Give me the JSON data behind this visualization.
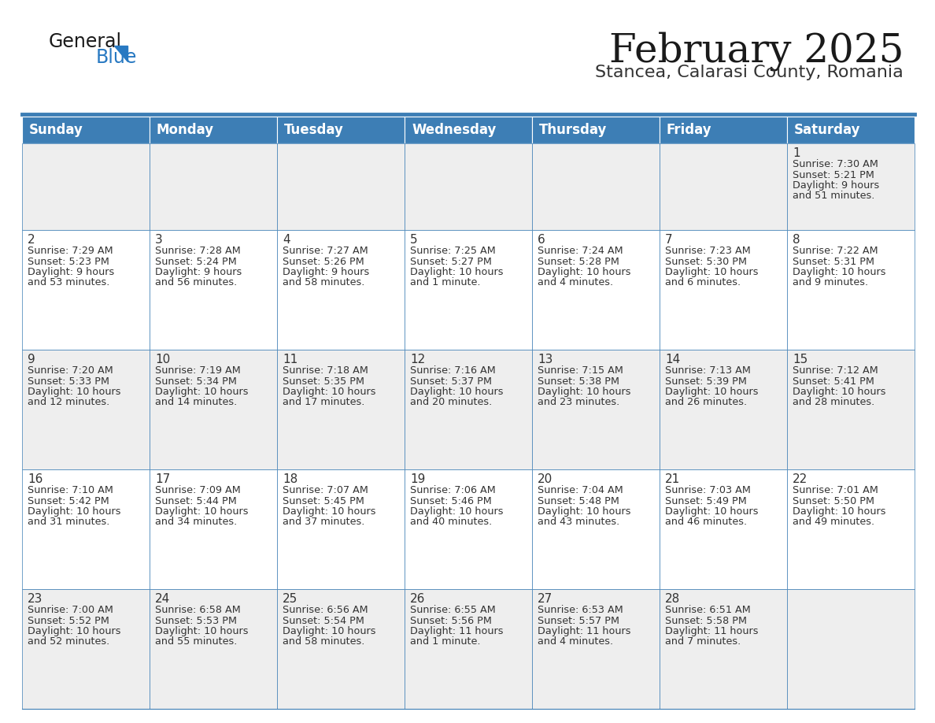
{
  "title": "February 2025",
  "subtitle": "Stancea, Calarasi County, Romania",
  "days_of_week": [
    "Sunday",
    "Monday",
    "Tuesday",
    "Wednesday",
    "Thursday",
    "Friday",
    "Saturday"
  ],
  "header_bg": "#3D7EB5",
  "header_text": "#FFFFFF",
  "cell_bg_light": "#EEEEEE",
  "cell_bg_white": "#FFFFFF",
  "cell_text": "#333333",
  "day_num_color": "#333333",
  "border_color": "#3D7EB5",
  "title_color": "#1a1a1a",
  "subtitle_color": "#333333",
  "logo_dark_color": "#1a1a1a",
  "logo_blue_color": "#2879C2",
  "weeks": [
    [
      null,
      null,
      null,
      null,
      null,
      null,
      1
    ],
    [
      2,
      3,
      4,
      5,
      6,
      7,
      8
    ],
    [
      9,
      10,
      11,
      12,
      13,
      14,
      15
    ],
    [
      16,
      17,
      18,
      19,
      20,
      21,
      22
    ],
    [
      23,
      24,
      25,
      26,
      27,
      28,
      null
    ]
  ],
  "row_bg": [
    "#EEEEEE",
    "#FFFFFF",
    "#EEEEEE",
    "#FFFFFF",
    "#EEEEEE"
  ],
  "day_data": {
    "1": {
      "sunrise": "7:30 AM",
      "sunset": "5:21 PM",
      "daylight_l1": "Daylight: 9 hours",
      "daylight_l2": "and 51 minutes."
    },
    "2": {
      "sunrise": "7:29 AM",
      "sunset": "5:23 PM",
      "daylight_l1": "Daylight: 9 hours",
      "daylight_l2": "and 53 minutes."
    },
    "3": {
      "sunrise": "7:28 AM",
      "sunset": "5:24 PM",
      "daylight_l1": "Daylight: 9 hours",
      "daylight_l2": "and 56 minutes."
    },
    "4": {
      "sunrise": "7:27 AM",
      "sunset": "5:26 PM",
      "daylight_l1": "Daylight: 9 hours",
      "daylight_l2": "and 58 minutes."
    },
    "5": {
      "sunrise": "7:25 AM",
      "sunset": "5:27 PM",
      "daylight_l1": "Daylight: 10 hours",
      "daylight_l2": "and 1 minute."
    },
    "6": {
      "sunrise": "7:24 AM",
      "sunset": "5:28 PM",
      "daylight_l1": "Daylight: 10 hours",
      "daylight_l2": "and 4 minutes."
    },
    "7": {
      "sunrise": "7:23 AM",
      "sunset": "5:30 PM",
      "daylight_l1": "Daylight: 10 hours",
      "daylight_l2": "and 6 minutes."
    },
    "8": {
      "sunrise": "7:22 AM",
      "sunset": "5:31 PM",
      "daylight_l1": "Daylight: 10 hours",
      "daylight_l2": "and 9 minutes."
    },
    "9": {
      "sunrise": "7:20 AM",
      "sunset": "5:33 PM",
      "daylight_l1": "Daylight: 10 hours",
      "daylight_l2": "and 12 minutes."
    },
    "10": {
      "sunrise": "7:19 AM",
      "sunset": "5:34 PM",
      "daylight_l1": "Daylight: 10 hours",
      "daylight_l2": "and 14 minutes."
    },
    "11": {
      "sunrise": "7:18 AM",
      "sunset": "5:35 PM",
      "daylight_l1": "Daylight: 10 hours",
      "daylight_l2": "and 17 minutes."
    },
    "12": {
      "sunrise": "7:16 AM",
      "sunset": "5:37 PM",
      "daylight_l1": "Daylight: 10 hours",
      "daylight_l2": "and 20 minutes."
    },
    "13": {
      "sunrise": "7:15 AM",
      "sunset": "5:38 PM",
      "daylight_l1": "Daylight: 10 hours",
      "daylight_l2": "and 23 minutes."
    },
    "14": {
      "sunrise": "7:13 AM",
      "sunset": "5:39 PM",
      "daylight_l1": "Daylight: 10 hours",
      "daylight_l2": "and 26 minutes."
    },
    "15": {
      "sunrise": "7:12 AM",
      "sunset": "5:41 PM",
      "daylight_l1": "Daylight: 10 hours",
      "daylight_l2": "and 28 minutes."
    },
    "16": {
      "sunrise": "7:10 AM",
      "sunset": "5:42 PM",
      "daylight_l1": "Daylight: 10 hours",
      "daylight_l2": "and 31 minutes."
    },
    "17": {
      "sunrise": "7:09 AM",
      "sunset": "5:44 PM",
      "daylight_l1": "Daylight: 10 hours",
      "daylight_l2": "and 34 minutes."
    },
    "18": {
      "sunrise": "7:07 AM",
      "sunset": "5:45 PM",
      "daylight_l1": "Daylight: 10 hours",
      "daylight_l2": "and 37 minutes."
    },
    "19": {
      "sunrise": "7:06 AM",
      "sunset": "5:46 PM",
      "daylight_l1": "Daylight: 10 hours",
      "daylight_l2": "and 40 minutes."
    },
    "20": {
      "sunrise": "7:04 AM",
      "sunset": "5:48 PM",
      "daylight_l1": "Daylight: 10 hours",
      "daylight_l2": "and 43 minutes."
    },
    "21": {
      "sunrise": "7:03 AM",
      "sunset": "5:49 PM",
      "daylight_l1": "Daylight: 10 hours",
      "daylight_l2": "and 46 minutes."
    },
    "22": {
      "sunrise": "7:01 AM",
      "sunset": "5:50 PM",
      "daylight_l1": "Daylight: 10 hours",
      "daylight_l2": "and 49 minutes."
    },
    "23": {
      "sunrise": "7:00 AM",
      "sunset": "5:52 PM",
      "daylight_l1": "Daylight: 10 hours",
      "daylight_l2": "and 52 minutes."
    },
    "24": {
      "sunrise": "6:58 AM",
      "sunset": "5:53 PM",
      "daylight_l1": "Daylight: 10 hours",
      "daylight_l2": "and 55 minutes."
    },
    "25": {
      "sunrise": "6:56 AM",
      "sunset": "5:54 PM",
      "daylight_l1": "Daylight: 10 hours",
      "daylight_l2": "and 58 minutes."
    },
    "26": {
      "sunrise": "6:55 AM",
      "sunset": "5:56 PM",
      "daylight_l1": "Daylight: 11 hours",
      "daylight_l2": "and 1 minute."
    },
    "27": {
      "sunrise": "6:53 AM",
      "sunset": "5:57 PM",
      "daylight_l1": "Daylight: 11 hours",
      "daylight_l2": "and 4 minutes."
    },
    "28": {
      "sunrise": "6:51 AM",
      "sunset": "5:58 PM",
      "daylight_l1": "Daylight: 11 hours",
      "daylight_l2": "and 7 minutes."
    }
  },
  "figsize": [
    11.88,
    9.18
  ],
  "dpi": 100
}
